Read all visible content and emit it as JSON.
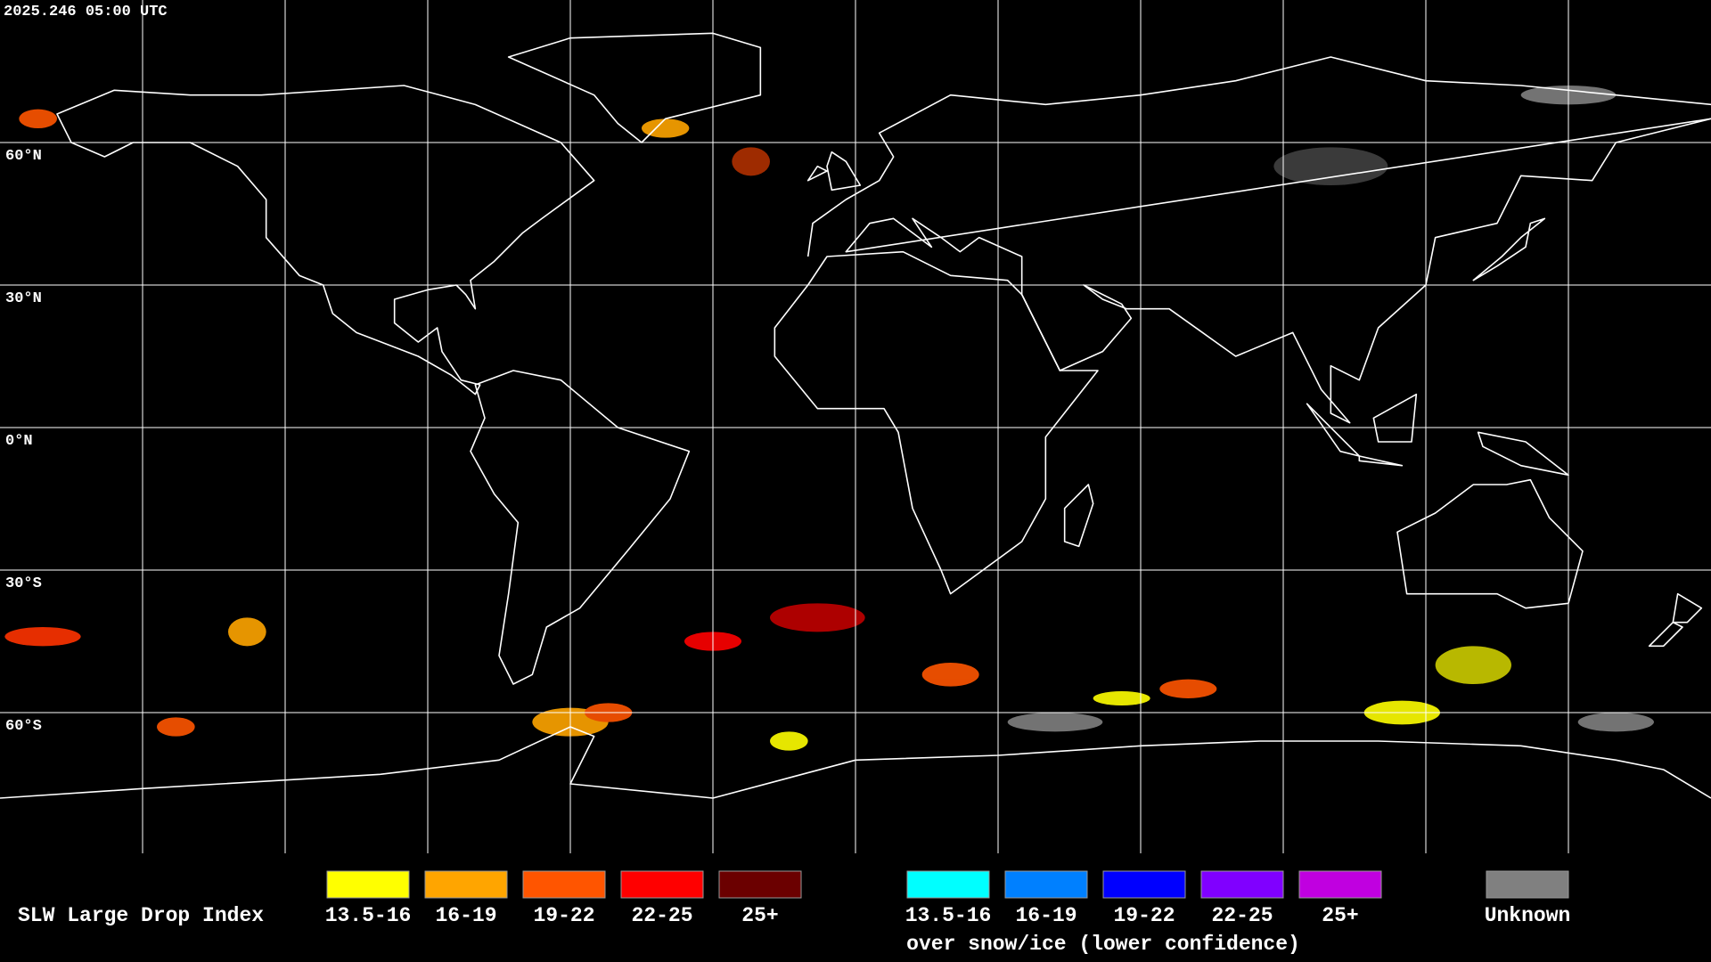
{
  "timestamp": "2025.246 05:00 UTC",
  "latitude_labels": [
    "60°N",
    "30°N",
    "0°N",
    "30°S",
    "60°S"
  ],
  "legend": {
    "title": "SLW Large Drop Index",
    "items": [
      {
        "label": "13.5-16",
        "color": "#ffff00"
      },
      {
        "label": "16-19",
        "color": "#ffa500"
      },
      {
        "label": "19-22",
        "color": "#ff5500"
      },
      {
        "label": "22-25",
        "color": "#ff0000"
      },
      {
        "label": "25+",
        "color": "#6b0000"
      }
    ],
    "snow_ice_items": [
      {
        "label": "13.5-16",
        "color": "#00ffff"
      },
      {
        "label": "16-19",
        "color": "#0080ff"
      },
      {
        "label": "19-22",
        "color": "#0000ff"
      },
      {
        "label": "22-25",
        "color": "#8000ff"
      },
      {
        "label": "25+",
        "color": "#c000e0"
      }
    ],
    "snow_ice_caption": "over snow/ice (lower confidence)",
    "unknown": {
      "label": "Unknown",
      "color": "#808080"
    }
  }
}
